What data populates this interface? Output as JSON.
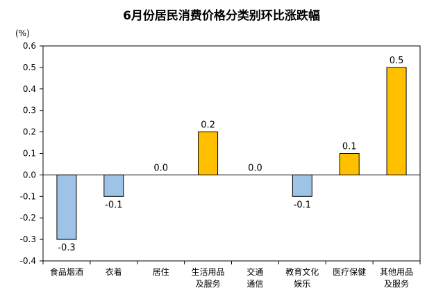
{
  "chart_data": {
    "type": "bar",
    "title": "6月份居民消费价格分类别环比涨跌幅",
    "unit": "(%)",
    "categories": [
      [
        "食品烟酒"
      ],
      [
        "衣着"
      ],
      [
        "居住"
      ],
      [
        "生活用品",
        "及服务"
      ],
      [
        "交通",
        "通信"
      ],
      [
        "教育文化",
        "娱乐"
      ],
      [
        "医疗保健"
      ],
      [
        "其他用品",
        "及服务"
      ]
    ],
    "values": [
      -0.3,
      -0.1,
      0.0,
      0.2,
      0.0,
      -0.1,
      0.1,
      0.5
    ],
    "value_labels": [
      "-0.3",
      "-0.1",
      "0.0",
      "0.2",
      "0.0",
      "-0.1",
      "0.1",
      "0.5"
    ],
    "ylim": [
      -0.4,
      0.6
    ],
    "yticks": [
      "0.6",
      "0.5",
      "0.4",
      "0.3",
      "0.2",
      "0.1",
      "0.0",
      "-0.1",
      "-0.2",
      "-0.3",
      "-0.4"
    ],
    "ytick_values": [
      0.6,
      0.5,
      0.4,
      0.3,
      0.2,
      0.1,
      0.0,
      -0.1,
      -0.2,
      -0.3,
      -0.4
    ],
    "grid": false,
    "colors": {
      "positive": "#FFC000",
      "negative": "#9DC3E6",
      "bar_border": "#000000"
    }
  }
}
